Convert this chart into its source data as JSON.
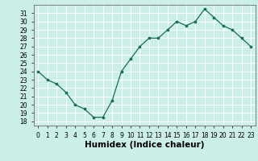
{
  "x": [
    0,
    1,
    2,
    3,
    4,
    5,
    6,
    7,
    8,
    9,
    10,
    11,
    12,
    13,
    14,
    15,
    16,
    17,
    18,
    19,
    20,
    21,
    22,
    23
  ],
  "y": [
    24,
    23,
    22.5,
    21.5,
    20,
    19.5,
    18.5,
    18.5,
    20.5,
    24,
    25.5,
    27,
    28,
    28,
    29,
    30,
    29.5,
    30,
    31.5,
    30.5,
    29.5,
    29,
    28,
    27
  ],
  "line_color": "#1a6b5a",
  "marker_color": "#1a6b5a",
  "bg_color": "#cceee8",
  "grid_color": "#ffffff",
  "xlabel": "Humidex (Indice chaleur)",
  "xlim": [
    -0.5,
    23.5
  ],
  "ylim": [
    17.5,
    32
  ],
  "yticks": [
    18,
    19,
    20,
    21,
    22,
    23,
    24,
    25,
    26,
    27,
    28,
    29,
    30,
    31
  ],
  "xticks": [
    0,
    1,
    2,
    3,
    4,
    5,
    6,
    7,
    8,
    9,
    10,
    11,
    12,
    13,
    14,
    15,
    16,
    17,
    18,
    19,
    20,
    21,
    22,
    23
  ],
  "tick_fontsize": 5.5,
  "xlabel_fontsize": 7.5
}
